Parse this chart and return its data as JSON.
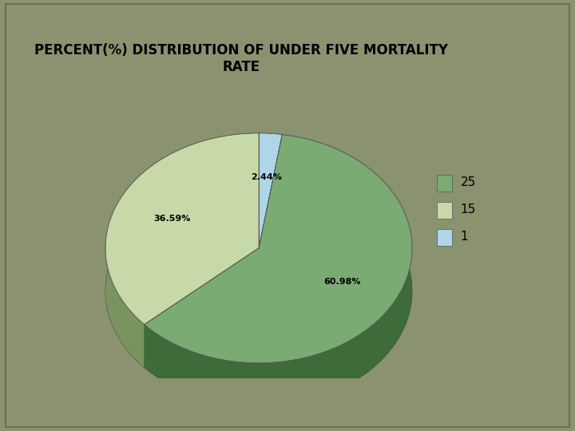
{
  "title": "PERCENT(%) DISTRIBUTION OF UNDER FIVE MORTALITY\nRATE",
  "labels": [
    "25",
    "15",
    "1"
  ],
  "values": [
    60.98,
    36.59,
    2.44
  ],
  "colors_top": [
    "#7aab72",
    "#c8d9a8",
    "#aed6e8"
  ],
  "colors_side": [
    "#3d6b3a",
    "#7a9460",
    "#7aaabb"
  ],
  "background_color": "#8b9270",
  "title_fontsize": 12,
  "legend_fontsize": 11,
  "startangle": 90,
  "pct_labels": [
    "60.98%",
    "36.59%",
    "2.44%"
  ]
}
